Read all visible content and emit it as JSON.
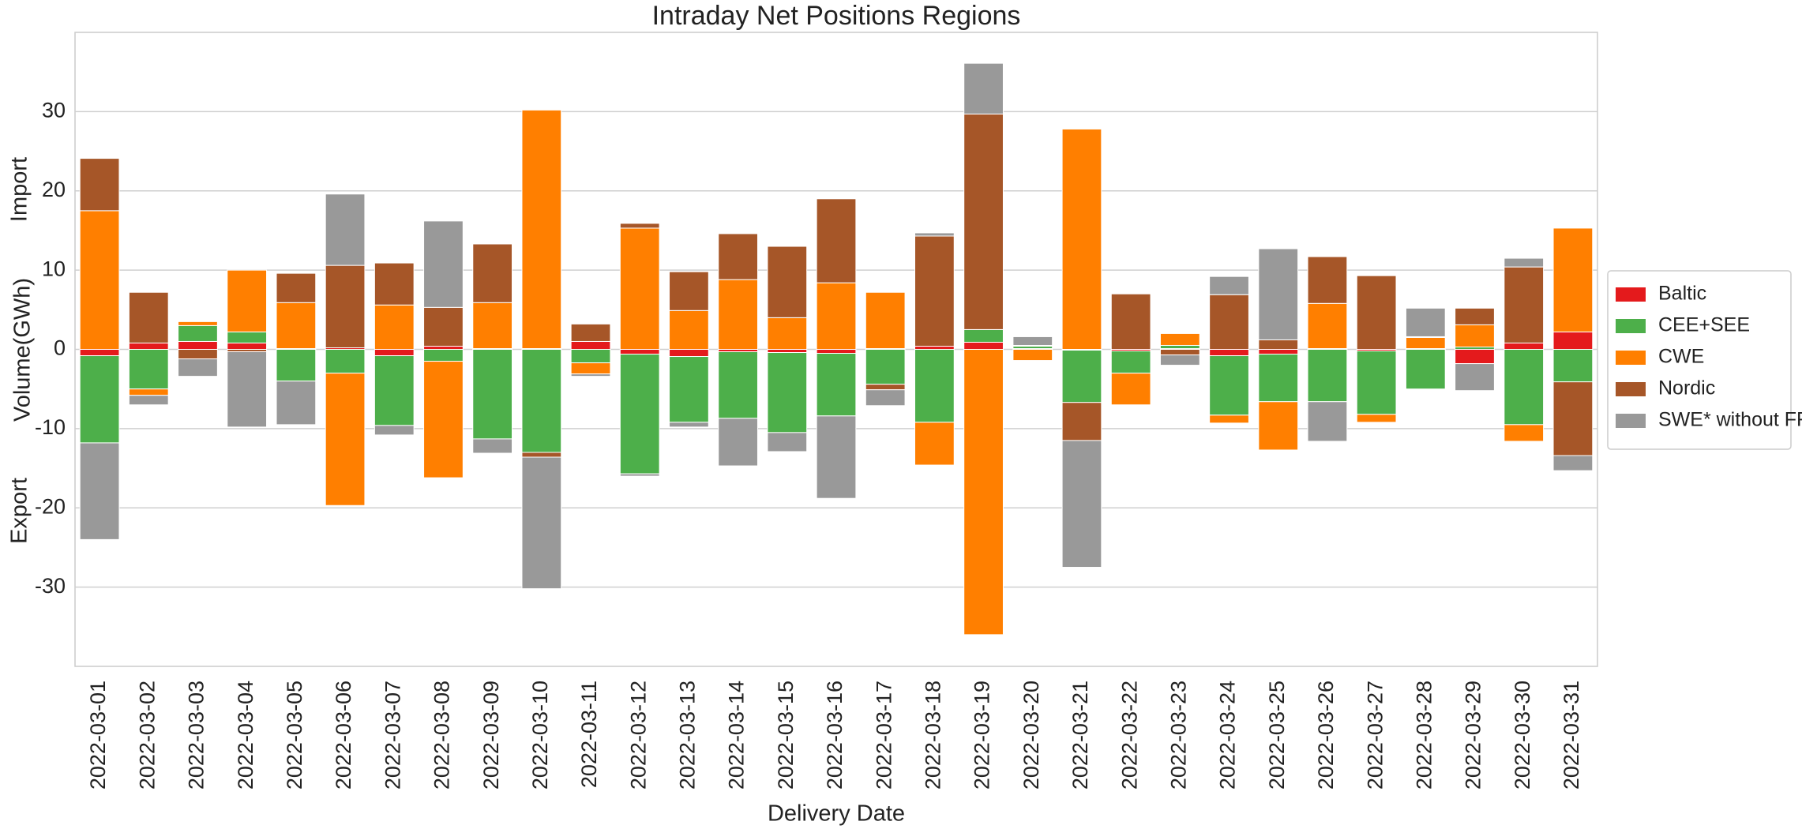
{
  "chart_data": {
    "type": "bar",
    "stacked": true,
    "title": "Intraday Net Positions Regions",
    "x_label": "Delivery Date",
    "y_label": "Volume(GWh)",
    "annotations": [
      "Import",
      "Export"
    ],
    "categories": [
      "2022-03-01",
      "2022-03-02",
      "2022-03-03",
      "2022-03-04",
      "2022-03-05",
      "2022-03-06",
      "2022-03-07",
      "2022-03-08",
      "2022-03-09",
      "2022-03-10",
      "2022-03-11",
      "2022-03-12",
      "2022-03-13",
      "2022-03-14",
      "2022-03-15",
      "2022-03-16",
      "2022-03-17",
      "2022-03-18",
      "2022-03-19",
      "2022-03-20",
      "2022-03-21",
      "2022-03-22",
      "2022-03-23",
      "2022-03-24",
      "2022-03-25",
      "2022-03-26",
      "2022-03-27",
      "2022-03-28",
      "2022-03-29",
      "2022-03-30",
      "2022-03-31"
    ],
    "series": [
      {
        "name": "Baltic",
        "color": "#e41a1c",
        "values": [
          -0.8,
          0.8,
          1.0,
          0.8,
          0.1,
          0.2,
          -0.8,
          0.4,
          0.1,
          0.1,
          1.0,
          -0.6,
          -0.9,
          -0.3,
          -0.4,
          -0.5,
          0.1,
          0.4,
          0.9,
          0.1,
          -0.1,
          -0.2,
          0.1,
          -0.8,
          -0.6,
          0.1,
          -0.2,
          0.1,
          -1.8,
          0.8,
          2.2
        ]
      },
      {
        "name": "CEE+SEE",
        "color": "#4daf4a",
        "values": [
          -11.0,
          -5.0,
          2.0,
          1.4,
          -4.0,
          -3.0,
          -8.8,
          -1.5,
          -11.3,
          -13.0,
          -1.7,
          -15.1,
          -8.3,
          -8.4,
          -10.1,
          -7.9,
          -4.4,
          -9.2,
          1.6,
          0.3,
          -6.6,
          -2.8,
          0.4,
          -7.5,
          -6.0,
          -6.6,
          -8.0,
          -5.0,
          0.3,
          -9.5,
          -4.1
        ]
      },
      {
        "name": "CWE",
        "color": "#ff7f00",
        "values": [
          17.5,
          -0.8,
          0.5,
          7.8,
          5.8,
          -16.7,
          5.6,
          -14.7,
          5.8,
          30.1,
          -1.4,
          15.3,
          4.9,
          8.8,
          4.0,
          8.4,
          7.1,
          -5.4,
          -36.0,
          -1.4,
          27.8,
          -4.0,
          1.5,
          -1.0,
          -6.1,
          5.7,
          -1.0,
          1.4,
          2.8,
          -2.1,
          13.1
        ]
      },
      {
        "name": "Nordic",
        "color": "#a65628",
        "values": [
          6.6,
          6.4,
          -1.2,
          -0.3,
          3.7,
          10.4,
          5.3,
          4.9,
          7.4,
          -0.6,
          2.2,
          0.6,
          4.9,
          5.8,
          9.0,
          10.6,
          -0.7,
          13.9,
          27.2,
          0.1,
          -4.8,
          7.0,
          -0.7,
          6.9,
          1.2,
          5.9,
          9.3,
          0.1,
          2.1,
          9.6,
          -9.3
        ]
      },
      {
        "name": "SWE* without FR",
        "color": "#999999",
        "values": [
          -12.2,
          -1.2,
          -2.2,
          -9.5,
          -5.5,
          9.0,
          -1.2,
          10.9,
          -1.8,
          -16.6,
          -0.3,
          -0.3,
          -0.6,
          -6.0,
          -2.4,
          -10.4,
          -2.0,
          0.4,
          6.4,
          1.1,
          -16.0,
          0,
          -1.3,
          2.3,
          11.5,
          -5.0,
          0,
          3.6,
          -3.4,
          1.1,
          -1.9
        ]
      }
    ],
    "ylim": [
      -40,
      40
    ],
    "yticks": [
      -30,
      -20,
      -10,
      0,
      10,
      20,
      30
    ],
    "grid": true,
    "legend": "right"
  }
}
